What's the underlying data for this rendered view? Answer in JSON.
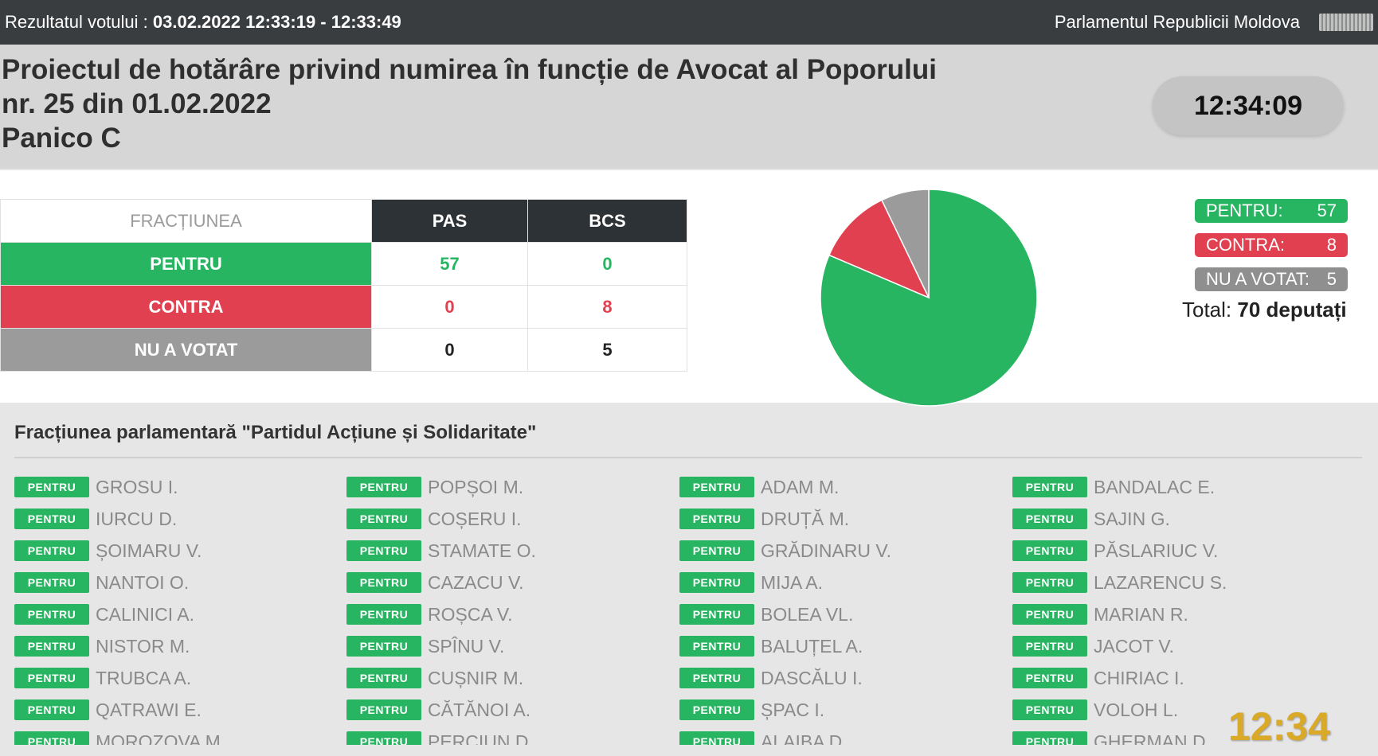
{
  "topbar": {
    "label": "Rezultatul votului :",
    "datetime": "03.02.2022 12:33:19 - 12:33:49",
    "institution": "Parlamentul Republicii Moldova"
  },
  "title": {
    "line1": "Proiectul de hotărâre privind numirea în funcție de Avocat al Poporului",
    "line2": "nr. 25 din 01.02.2022",
    "line3": "Panico C"
  },
  "clock": "12:34:09",
  "table": {
    "header": "FRACȚIUNEA",
    "parties": [
      "PAS",
      "BCS"
    ],
    "rows": [
      {
        "label": "PENTRU",
        "values": [
          "57",
          "0"
        ]
      },
      {
        "label": "CONTRA",
        "values": [
          "0",
          "8"
        ]
      },
      {
        "label": "NU A VOTAT",
        "values": [
          "0",
          "5"
        ]
      }
    ]
  },
  "chart_data": {
    "type": "pie",
    "labels": [
      "PENTRU",
      "CONTRA",
      "NU A VOTAT"
    ],
    "values": [
      57,
      8,
      5
    ],
    "colors": [
      "#27b562",
      "#e0404f",
      "#9b9b9b"
    ]
  },
  "legend": {
    "pentru": {
      "label": "PENTRU:",
      "value": "57"
    },
    "contra": {
      "label": "CONTRA:",
      "value": "8"
    },
    "nu": {
      "label": "NU A VOTAT:",
      "value": "5"
    },
    "total_label": "Total:",
    "total_value": "70 deputați"
  },
  "faction": {
    "title": "Fracțiunea parlamentară \"Partidul Acțiune și Solidaritate\"",
    "badge": "PENTRU",
    "columns": [
      [
        "GROSU I.",
        "IURCU D.",
        "ȘOIMARU V.",
        "NANTOI O.",
        "CALINICI A.",
        "NISTOR M.",
        "TRUBCA A.",
        "QATRAWI E.",
        "MOROZOVA M."
      ],
      [
        "POPȘOI M.",
        "COȘERU I.",
        "STAMATE O.",
        "CAZACU V.",
        "ROȘCA V.",
        "SPÎNU V.",
        "CUȘNIR M.",
        "CĂTĂNOI A.",
        "PERCIUN D."
      ],
      [
        "ADAM M.",
        "DRUȚĂ M.",
        "GRĂDINARU V.",
        "MIJA A.",
        "BOLEA VL.",
        "BALUȚEL A.",
        "DASCĂLU I.",
        "ȘPAC I.",
        "ALAIBA D."
      ],
      [
        "BANDALAC E.",
        "SAJIN G.",
        "PĂSLARIUC V.",
        "LAZARENCU S.",
        "MARIAN R.",
        "JACOT V.",
        "CHIRIAC I.",
        "VOLOH L.",
        "GHERMAN D."
      ]
    ]
  },
  "overlay_time": "12:34"
}
